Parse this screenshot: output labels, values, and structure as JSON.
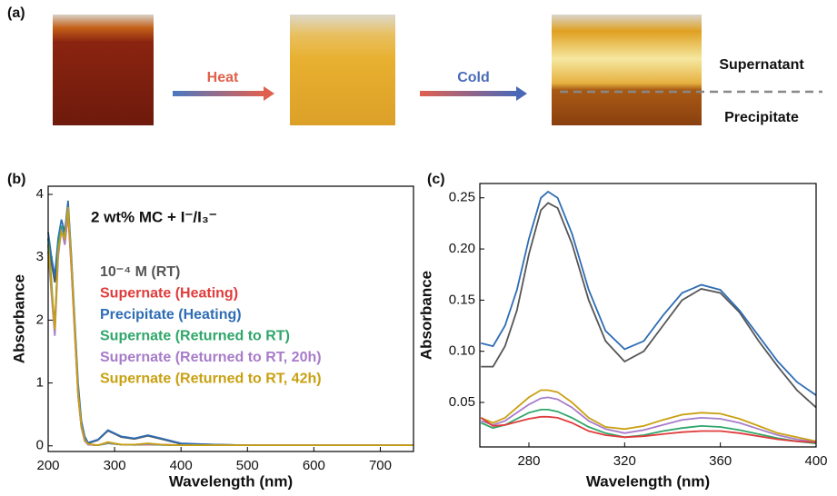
{
  "panel_a": {
    "label": "(a)",
    "arrows": [
      "Heat",
      "Cold"
    ],
    "layers": [
      "Supernatant",
      "Precipitate"
    ]
  },
  "chart_data": [
    {
      "type": "line",
      "panel_label": "(b)",
      "annotation": "2 wt% MC + I⁻/I₃⁻",
      "x_label": "Wavelength (nm)",
      "y_label": "Absorbance",
      "x": [
        200,
        205,
        210,
        215,
        220,
        225,
        230,
        235,
        240,
        245,
        250,
        255,
        260,
        275,
        290,
        310,
        330,
        350,
        370,
        400,
        450,
        500,
        600,
        750
      ],
      "series": [
        {
          "name": "10⁻⁴ M (RT)",
          "color": "#555555",
          "values": [
            3.3,
            2.9,
            2.6,
            3.2,
            3.5,
            3.3,
            3.8,
            2.9,
            1.9,
            0.9,
            0.35,
            0.12,
            0.04,
            0.09,
            0.24,
            0.14,
            0.11,
            0.16,
            0.11,
            0.03,
            0.02,
            0.01,
            0.01,
            0.01
          ]
        },
        {
          "name": "Supernate (Heating)",
          "color": "#e03c3c",
          "values": [
            3.2,
            2.5,
            1.9,
            3.1,
            3.5,
            3.2,
            3.7,
            2.8,
            1.8,
            0.8,
            0.3,
            0.08,
            0.02,
            0.01,
            0.04,
            0.02,
            0.015,
            0.02,
            0.015,
            0.01,
            0.01,
            0.01,
            0.01,
            0.01
          ]
        },
        {
          "name": "Precipitate (Heating)",
          "color": "#2e6db4",
          "values": [
            3.4,
            3.0,
            2.7,
            3.3,
            3.6,
            3.4,
            3.9,
            3.0,
            2.0,
            1.0,
            0.4,
            0.15,
            0.05,
            0.1,
            0.25,
            0.15,
            0.12,
            0.17,
            0.12,
            0.04,
            0.02,
            0.01,
            0.01,
            0.01
          ]
        },
        {
          "name": "Supernate (Returned to RT)",
          "color": "#2fa66a",
          "values": [
            3.3,
            2.6,
            1.8,
            3.2,
            3.5,
            3.3,
            3.75,
            2.9,
            1.9,
            0.85,
            0.3,
            0.08,
            0.02,
            0.01,
            0.04,
            0.02,
            0.015,
            0.025,
            0.015,
            0.01,
            0.01,
            0.01,
            0.01,
            0.01
          ]
        },
        {
          "name": "Supernate (Returned to RT, 20h)",
          "color": "#a77cc9",
          "values": [
            3.1,
            2.4,
            1.75,
            3.0,
            3.45,
            3.2,
            3.7,
            2.85,
            1.85,
            0.82,
            0.3,
            0.08,
            0.02,
            0.01,
            0.05,
            0.02,
            0.02,
            0.03,
            0.02,
            0.01,
            0.01,
            0.01,
            0.01,
            0.01
          ]
        },
        {
          "name": "Supernate (Returned to RT, 42h)",
          "color": "#c9a010",
          "values": [
            3.2,
            2.5,
            1.85,
            3.1,
            3.4,
            3.3,
            3.8,
            2.9,
            1.9,
            0.85,
            0.32,
            0.09,
            0.03,
            0.01,
            0.06,
            0.02,
            0.02,
            0.04,
            0.02,
            0.01,
            0.01,
            0.01,
            0.01,
            0.01
          ]
        }
      ],
      "xlim": [
        200,
        750
      ],
      "xticks": [
        200,
        300,
        400,
        500,
        600,
        700
      ],
      "ylim": [
        -0.09,
        4.13
      ],
      "yticks": [
        0,
        1,
        2,
        3,
        4
      ]
    },
    {
      "type": "line",
      "panel_label": "(c)",
      "x_label": "Wavelength (nm)",
      "y_label": "Absorbance",
      "x": [
        260,
        265,
        270,
        275,
        280,
        285,
        288,
        292,
        298,
        305,
        312,
        320,
        328,
        336,
        344,
        352,
        360,
        368,
        376,
        384,
        392,
        400
      ],
      "series": [
        {
          "color": "#555555",
          "values": [
            0.085,
            0.085,
            0.105,
            0.14,
            0.195,
            0.238,
            0.245,
            0.24,
            0.205,
            0.15,
            0.11,
            0.09,
            0.1,
            0.125,
            0.15,
            0.161,
            0.157,
            0.138,
            0.11,
            0.085,
            0.062,
            0.045
          ]
        },
        {
          "color": "#2e6db4",
          "values": [
            0.108,
            0.105,
            0.125,
            0.16,
            0.21,
            0.25,
            0.256,
            0.25,
            0.215,
            0.16,
            0.12,
            0.102,
            0.11,
            0.135,
            0.157,
            0.165,
            0.16,
            0.14,
            0.115,
            0.09,
            0.07,
            0.057
          ]
        },
        {
          "color": "#c9a010",
          "values": [
            0.035,
            0.03,
            0.035,
            0.045,
            0.055,
            0.062,
            0.062,
            0.06,
            0.05,
            0.035,
            0.026,
            0.024,
            0.027,
            0.033,
            0.038,
            0.04,
            0.039,
            0.034,
            0.027,
            0.02,
            0.016,
            0.012
          ]
        },
        {
          "color": "#a77cc9",
          "values": [
            0.032,
            0.028,
            0.032,
            0.04,
            0.048,
            0.054,
            0.055,
            0.053,
            0.045,
            0.032,
            0.024,
            0.02,
            0.023,
            0.028,
            0.033,
            0.035,
            0.034,
            0.03,
            0.024,
            0.018,
            0.014,
            0.011
          ]
        },
        {
          "color": "#2fa66a",
          "values": [
            0.03,
            0.025,
            0.028,
            0.034,
            0.04,
            0.043,
            0.043,
            0.041,
            0.035,
            0.026,
            0.02,
            0.016,
            0.018,
            0.022,
            0.025,
            0.027,
            0.026,
            0.023,
            0.019,
            0.015,
            0.012,
            0.01
          ]
        },
        {
          "color": "#e03c3c",
          "values": [
            0.035,
            0.027,
            0.028,
            0.031,
            0.034,
            0.036,
            0.036,
            0.035,
            0.03,
            0.022,
            0.018,
            0.016,
            0.017,
            0.019,
            0.021,
            0.022,
            0.022,
            0.02,
            0.017,
            0.014,
            0.012,
            0.011
          ]
        }
      ],
      "xlim": [
        259.5,
        400
      ],
      "xticks": [
        280,
        320,
        360,
        400
      ],
      "ylim": [
        0.0065,
        0.264
      ],
      "yticks": [
        0.05,
        {
          "value": 0.1,
          "label": "0.10"
        },
        0.15,
        {
          "value": 0.2,
          "label": "0.20"
        },
        0.25
      ]
    }
  ]
}
